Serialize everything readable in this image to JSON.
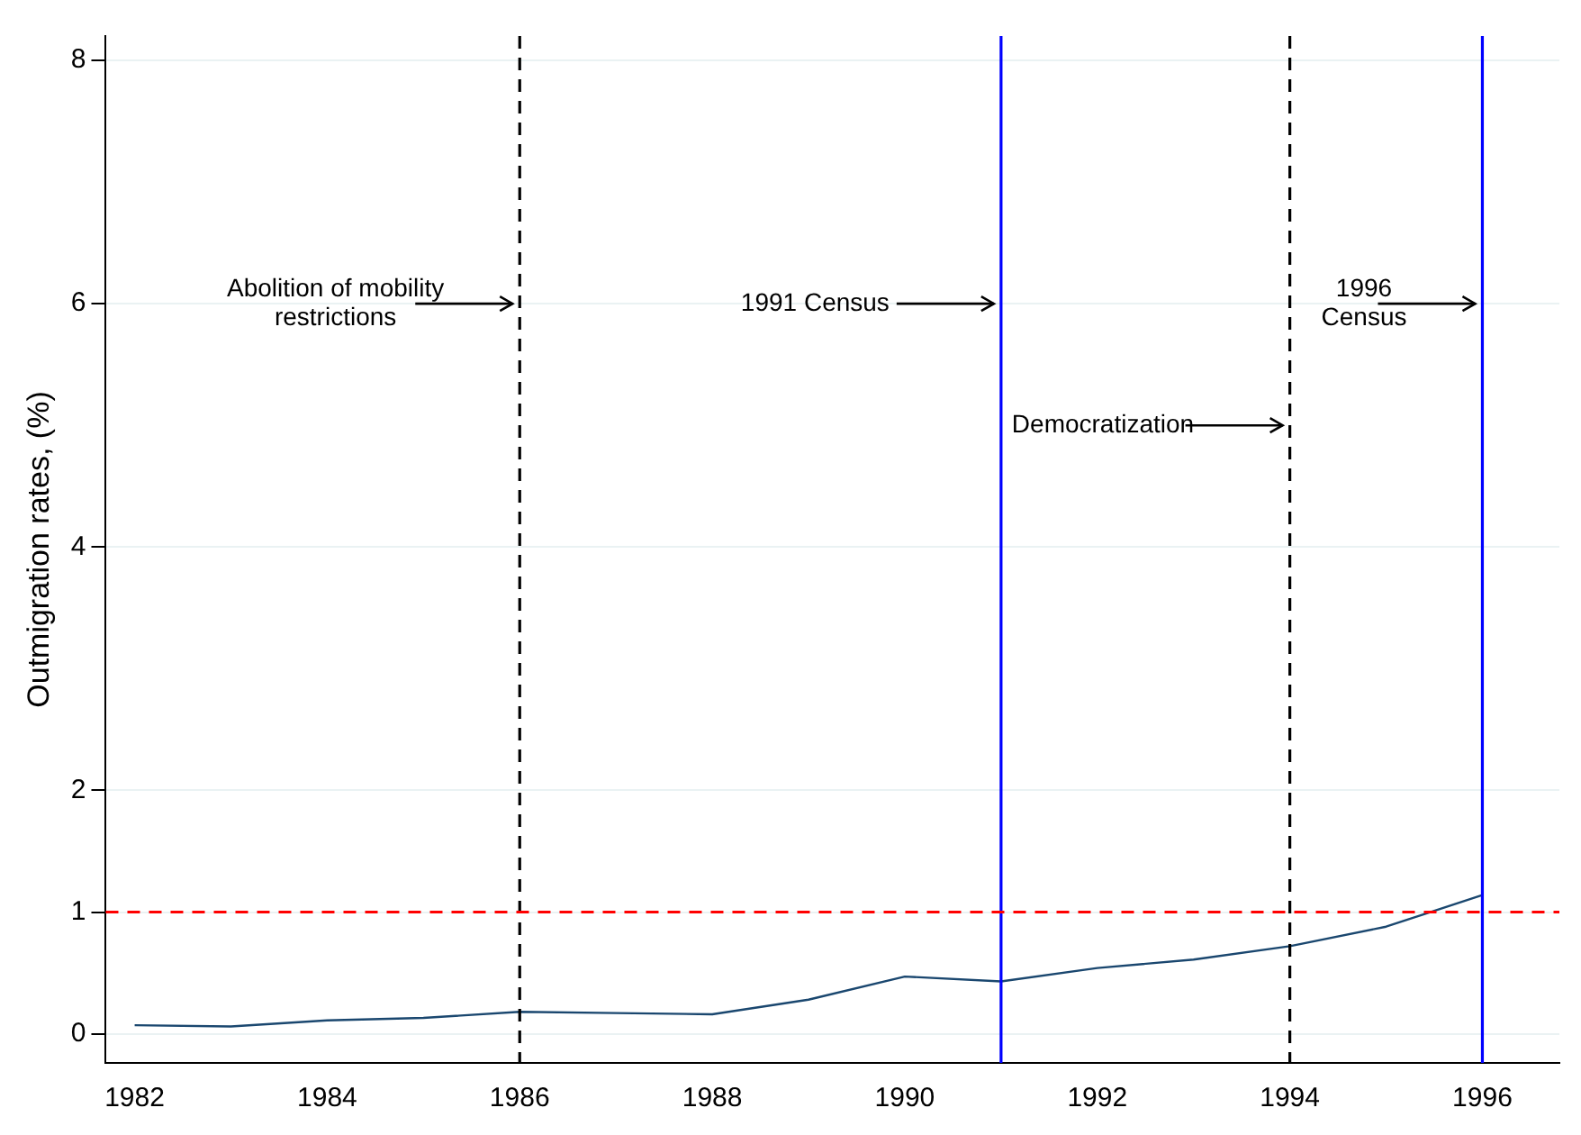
{
  "chart_data": {
    "type": "line",
    "ylabel": "Outmigration rates, (%)",
    "x": [
      1982,
      1983,
      1984,
      1985,
      1986,
      1987,
      1988,
      1989,
      1990,
      1991,
      1992,
      1993,
      1994,
      1995,
      1996
    ],
    "series": [
      {
        "color": "#1a476f",
        "values": [
          0.07,
          0.06,
          0.11,
          0.13,
          0.18,
          0.17,
          0.16,
          0.28,
          0.47,
          0.43,
          0.54,
          0.61,
          0.72,
          0.88,
          1.14
        ]
      }
    ],
    "xlim": [
      1981.7,
      1996.8
    ],
    "xticks": [
      1982,
      1984,
      1986,
      1988,
      1990,
      1992,
      1994,
      1996
    ],
    "ylim": [
      -0.24,
      8.2
    ],
    "yticks": [
      0,
      1,
      2,
      4,
      6,
      8
    ],
    "grid": "y",
    "legend": false,
    "marker": "none",
    "line_style": "solid",
    "ref_lines": [
      {
        "axis": "x",
        "value": 1986,
        "color": "#000000",
        "line_style": "dashed"
      },
      {
        "axis": "x",
        "value": 1991,
        "color": "#0000ff",
        "line_style": "solid"
      },
      {
        "axis": "x",
        "value": 1994,
        "color": "#000000",
        "line_style": "dashed"
      },
      {
        "axis": "x",
        "value": 1996,
        "color": "#0000ff",
        "line_style": "solid"
      },
      {
        "axis": "y",
        "value": 1,
        "color": "#ff0000",
        "line_style": "dashed"
      }
    ],
    "annotations": [
      {
        "text": "Abolition of mobility restrictions",
        "x": 1986,
        "y": 6
      },
      {
        "text": "1991 Census",
        "x": 1991,
        "y": 6
      },
      {
        "text": "Democratization",
        "x": 1994,
        "y": 5
      },
      {
        "text": "1996 Census",
        "x": 1996,
        "y": 6
      }
    ]
  }
}
